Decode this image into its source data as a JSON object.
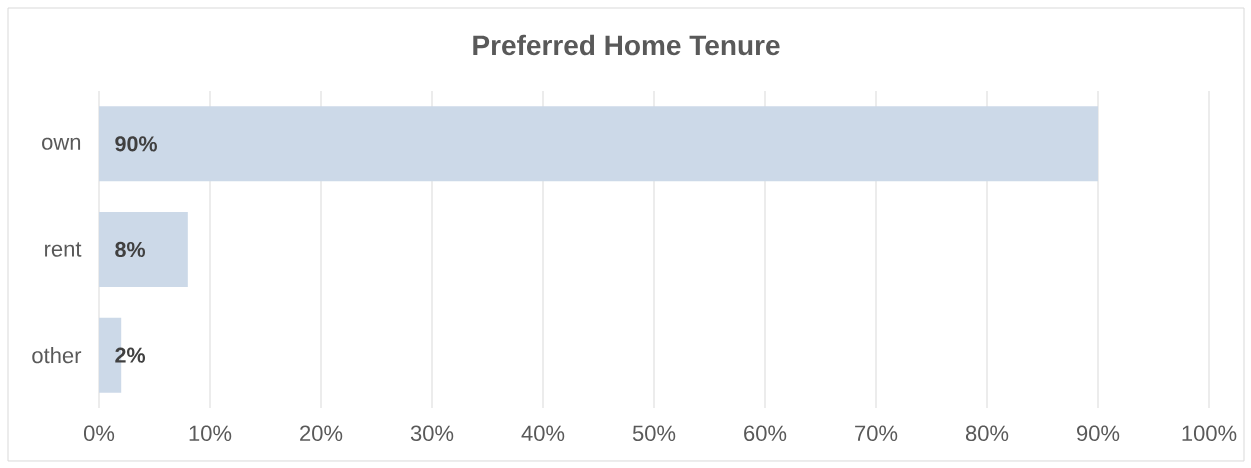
{
  "chart_data": {
    "type": "bar",
    "orientation": "horizontal",
    "title": "Preferred Home Tenure",
    "categories": [
      "own",
      "rent",
      "other"
    ],
    "values": [
      90,
      8,
      2
    ],
    "value_labels": [
      "90%",
      "8%",
      "2%"
    ],
    "color": "#ccd9e8",
    "xlim": [
      0,
      100
    ],
    "xticks": [
      {
        "value": 0,
        "label": "0%"
      },
      {
        "value": 10,
        "label": "10%"
      },
      {
        "value": 20,
        "label": "20%"
      },
      {
        "value": 30,
        "label": "30%"
      },
      {
        "value": 40,
        "label": "40%"
      },
      {
        "value": 50,
        "label": "50%"
      },
      {
        "value": 60,
        "label": "60%"
      },
      {
        "value": 70,
        "label": "70%"
      },
      {
        "value": 80,
        "label": "80%"
      },
      {
        "value": 90,
        "label": "90%"
      },
      {
        "value": 100,
        "label": "100%"
      }
    ],
    "grid": "x"
  }
}
